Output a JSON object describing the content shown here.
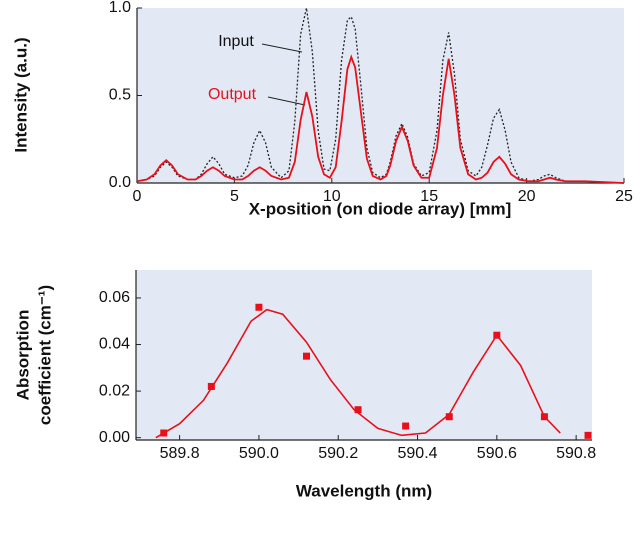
{
  "chart_data": [
    {
      "type": "line",
      "xlabel": "X-position (on diode array) [mm]",
      "ylabel": "Intensity (a.u.)",
      "annotations": [
        "Input",
        "Output"
      ],
      "x": [
        0,
        0.5,
        0.9,
        1.2,
        1.5,
        1.8,
        2.1,
        2.6,
        3.0,
        3.3,
        3.6,
        3.9,
        4.2,
        4.5,
        5.0,
        5.4,
        5.7,
        6.0,
        6.3,
        6.6,
        6.9,
        7.4,
        7.8,
        8.1,
        8.4,
        8.7,
        9.0,
        9.3,
        9.6,
        9.9,
        10.2,
        10.5,
        10.8,
        11.0,
        11.2,
        11.5,
        11.8,
        12.1,
        12.5,
        12.8,
        13.0,
        13.3,
        13.6,
        13.9,
        14.2,
        14.6,
        15.0,
        15.4,
        15.7,
        16.0,
        16.3,
        16.6,
        17.0,
        17.4,
        17.7,
        18.0,
        18.3,
        18.6,
        18.9,
        19.2,
        19.6,
        20.1,
        20.6,
        20.9,
        21.2,
        21.5,
        22.0,
        23.0,
        25.0
      ],
      "series": [
        {
          "name": "Input",
          "color": "#222222",
          "dash": true,
          "values": [
            0.01,
            0.02,
            0.04,
            0.09,
            0.12,
            0.09,
            0.04,
            0.02,
            0.02,
            0.05,
            0.11,
            0.15,
            0.11,
            0.05,
            0.03,
            0.04,
            0.1,
            0.23,
            0.3,
            0.23,
            0.09,
            0.03,
            0.07,
            0.35,
            0.85,
            1.0,
            0.75,
            0.3,
            0.08,
            0.07,
            0.25,
            0.7,
            0.93,
            0.95,
            0.88,
            0.55,
            0.2,
            0.06,
            0.03,
            0.05,
            0.12,
            0.27,
            0.34,
            0.26,
            0.11,
            0.04,
            0.06,
            0.3,
            0.7,
            0.86,
            0.62,
            0.25,
            0.07,
            0.04,
            0.09,
            0.22,
            0.37,
            0.42,
            0.3,
            0.12,
            0.03,
            0.01,
            0.02,
            0.04,
            0.05,
            0.03,
            0.01,
            0.01,
            0.0
          ]
        },
        {
          "name": "Output",
          "color": "#e8101a",
          "dash": false,
          "values": [
            0.01,
            0.02,
            0.05,
            0.1,
            0.13,
            0.1,
            0.05,
            0.02,
            0.02,
            0.04,
            0.07,
            0.09,
            0.07,
            0.04,
            0.02,
            0.02,
            0.04,
            0.07,
            0.09,
            0.07,
            0.04,
            0.02,
            0.03,
            0.12,
            0.36,
            0.52,
            0.38,
            0.15,
            0.05,
            0.03,
            0.09,
            0.35,
            0.65,
            0.72,
            0.66,
            0.4,
            0.14,
            0.04,
            0.02,
            0.04,
            0.1,
            0.24,
            0.32,
            0.24,
            0.1,
            0.03,
            0.03,
            0.2,
            0.5,
            0.71,
            0.5,
            0.2,
            0.05,
            0.02,
            0.03,
            0.06,
            0.12,
            0.15,
            0.11,
            0.05,
            0.02,
            0.01,
            0.01,
            0.02,
            0.03,
            0.02,
            0.01,
            0.01,
            0.0
          ]
        }
      ],
      "xlim": [
        0,
        25
      ],
      "xticks": [
        0,
        5,
        10,
        15,
        20,
        25
      ],
      "ylim": [
        0,
        1.0
      ],
      "yticks": [
        {
          "value": 0,
          "label": "0.0"
        },
        {
          "value": 0.5,
          "label": "0.5"
        },
        {
          "value": 1,
          "label": "1.0"
        }
      ]
    },
    {
      "type": "scatter",
      "xlabel": "Wavelength (nm)",
      "ylabel": [
        "Absorption",
        "coefficient (cm⁻¹)"
      ],
      "series": [
        {
          "style": "markers",
          "color": "#e8101a",
          "x": [
            589.76,
            589.88,
            590.0,
            590.12,
            590.25,
            590.37,
            590.48,
            590.6,
            590.72,
            590.83
          ],
          "values": [
            0.002,
            0.022,
            0.056,
            0.035,
            0.012,
            0.005,
            0.009,
            0.044,
            0.009,
            0.001
          ]
        },
        {
          "style": "line",
          "color": "#e8101a",
          "x": [
            589.74,
            589.8,
            589.86,
            589.92,
            589.98,
            590.02,
            590.06,
            590.12,
            590.18,
            590.24,
            590.3,
            590.36,
            590.42,
            590.48,
            590.54,
            590.6,
            590.66,
            590.72,
            590.76
          ],
          "values": [
            0.0,
            0.006,
            0.016,
            0.032,
            0.05,
            0.055,
            0.053,
            0.041,
            0.025,
            0.012,
            0.004,
            0.001,
            0.002,
            0.01,
            0.028,
            0.044,
            0.031,
            0.009,
            0.002
          ]
        }
      ],
      "xlim": [
        589.69,
        590.84
      ],
      "xticks": [
        589.8,
        {
          "value": 590,
          "label": "590.0"
        },
        590.2,
        590.4,
        590.6,
        590.8
      ],
      "ylim": [
        -0.001,
        0.072
      ],
      "yticks": [
        {
          "value": 0,
          "label": "0.00"
        },
        0.02,
        0.04,
        0.06
      ]
    }
  ]
}
